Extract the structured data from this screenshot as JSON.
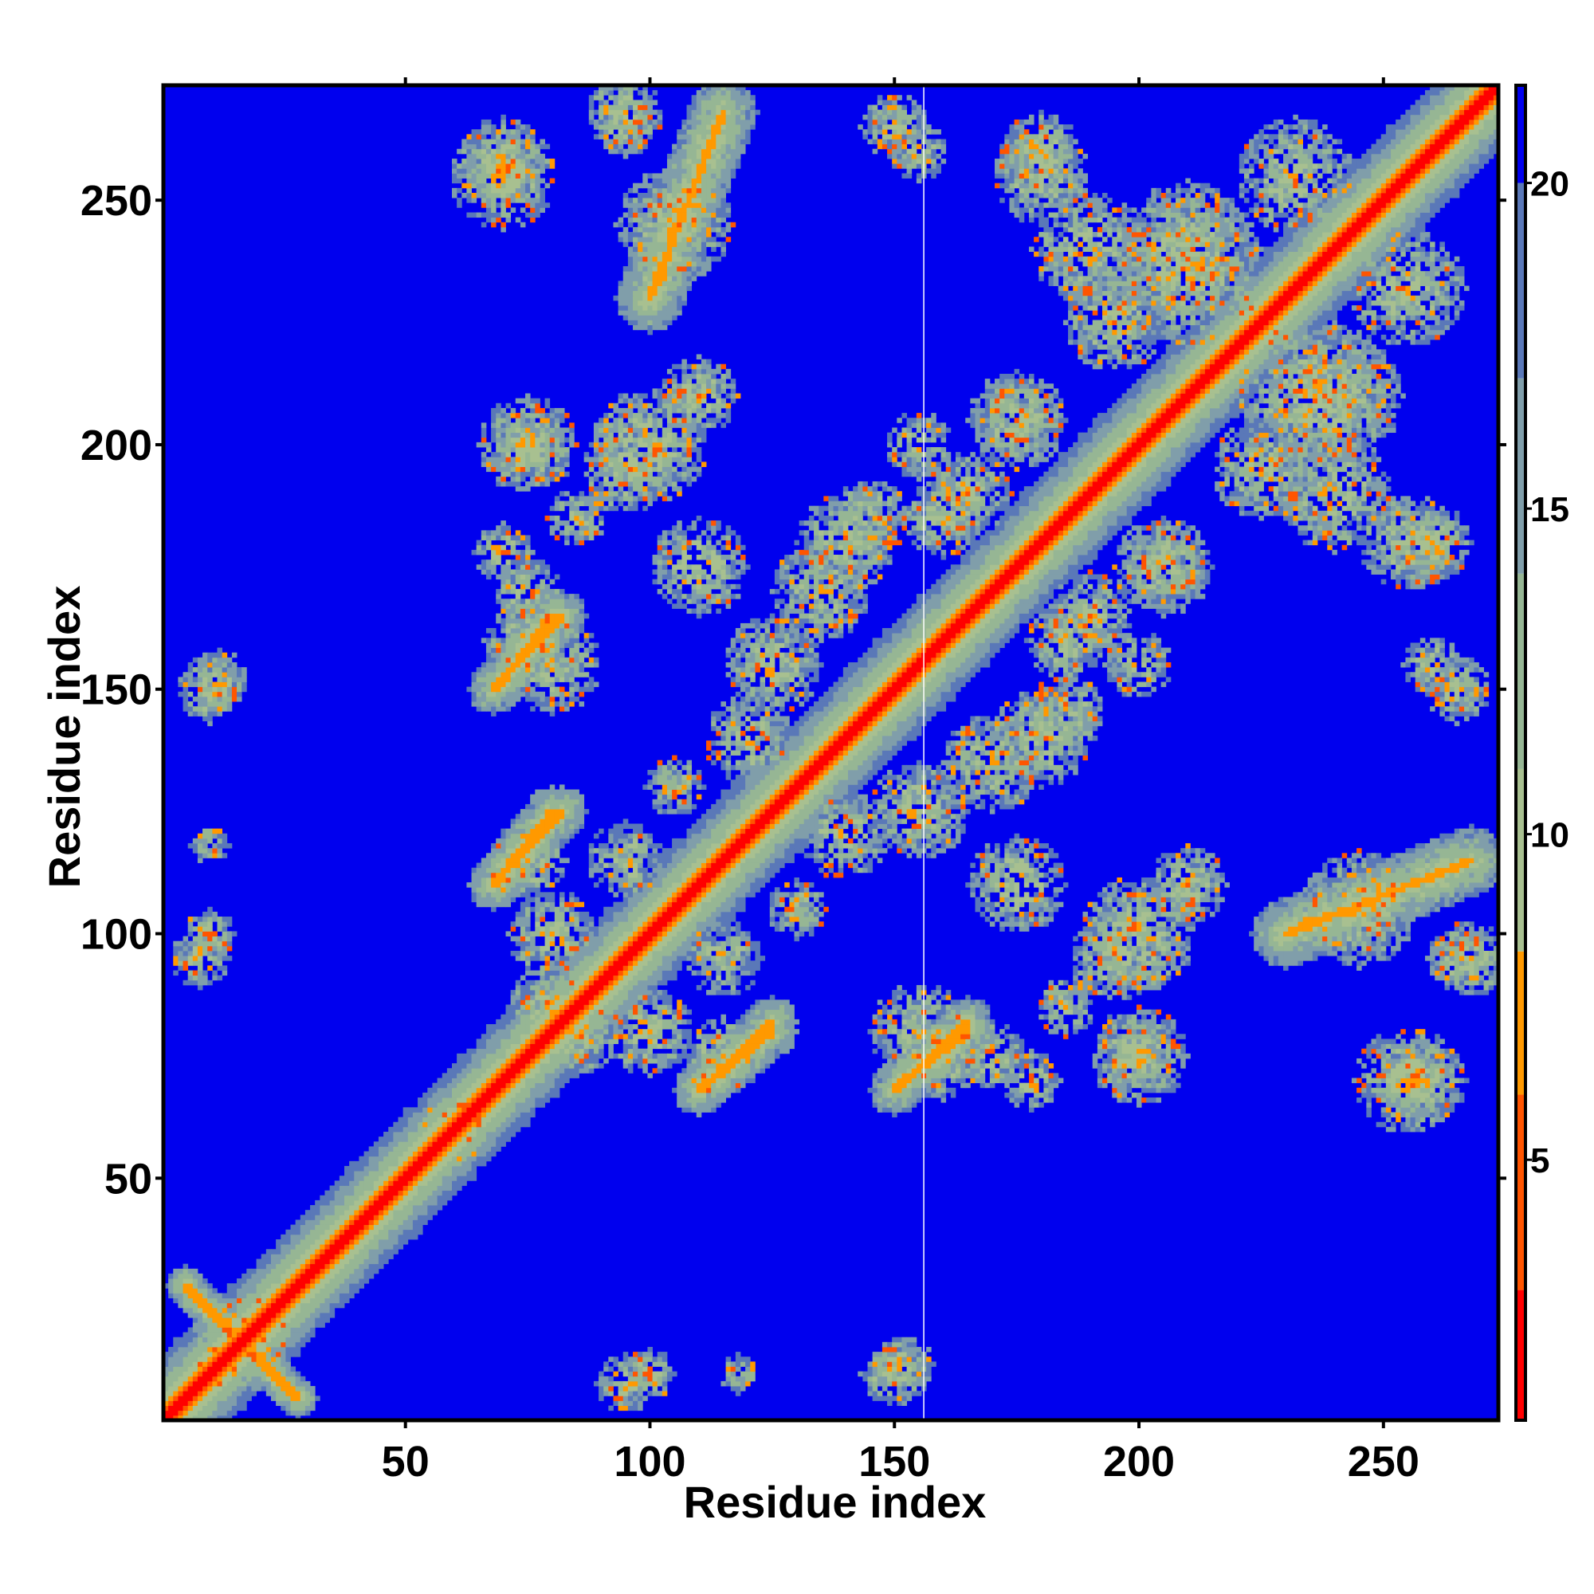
{
  "chart_data": {
    "type": "heatmap",
    "xlabel": "Residue index",
    "ylabel": "Residue index",
    "xlim": [
      1,
      273
    ],
    "ylim": [
      1,
      273
    ],
    "xticks": [
      50,
      100,
      150,
      200,
      250
    ],
    "yticks": [
      50,
      100,
      150,
      200,
      250
    ],
    "xtick_labels": [
      "50",
      "100",
      "150",
      "200",
      "250"
    ],
    "ytick_labels": [
      "50",
      "100",
      "150",
      "200",
      "250"
    ],
    "colorbar": {
      "range": [
        1,
        21.5
      ],
      "ticks": [
        5,
        10,
        15,
        20
      ],
      "tick_labels": [
        "5",
        "10",
        "15",
        "20"
      ],
      "bands": [
        {
          "from": 1,
          "to": 3,
          "color": "#ff0000"
        },
        {
          "from": 3,
          "to": 6,
          "color": "#ff5500"
        },
        {
          "from": 6,
          "to": 8.2,
          "color": "#ff9900"
        },
        {
          "from": 8.2,
          "to": 11,
          "color": "#a8c090"
        },
        {
          "from": 11,
          "to": 14,
          "color": "#96b694"
        },
        {
          "from": 14,
          "to": 17,
          "color": "#809eaa"
        },
        {
          "from": 17,
          "to": 20,
          "color": "#5a78b8"
        },
        {
          "from": 20,
          "to": 21.5,
          "color": "#0000ee"
        }
      ]
    },
    "background_color": "#0000ee",
    "missing_residue_x": 156,
    "contact_features": [
      {
        "kind": "diagonal",
        "from": 1,
        "to": 273,
        "width": 6
      },
      {
        "kind": "blob",
        "x": 16,
        "y": 16,
        "r": 10
      },
      {
        "kind": "antidiag",
        "x1": 5,
        "y1": 28,
        "x2": 28,
        "y2": 5,
        "width": 4
      },
      {
        "kind": "blob",
        "x": 152,
        "y": 12,
        "r": 6
      },
      {
        "kind": "blob",
        "x": 95,
        "y": 8,
        "r": 6
      },
      {
        "kind": "blob",
        "x": 10,
        "y": 150,
        "r": 7
      },
      {
        "kind": "blob",
        "x": 10,
        "y": 100,
        "r": 5
      },
      {
        "kind": "blob",
        "x": 10,
        "y": 118,
        "r": 4
      },
      {
        "kind": "blob",
        "x": 70,
        "y": 258,
        "r": 9
      },
      {
        "kind": "band",
        "x1": 100,
        "y1": 230,
        "x2": 115,
        "y2": 268,
        "width": 7
      },
      {
        "kind": "blob",
        "x": 95,
        "y": 268,
        "r": 8
      },
      {
        "kind": "blob",
        "x": 155,
        "y": 260,
        "r": 6
      },
      {
        "kind": "blob",
        "x": 180,
        "y": 255,
        "r": 10
      },
      {
        "kind": "blob",
        "x": 210,
        "y": 240,
        "r": 14
      },
      {
        "kind": "blob",
        "x": 235,
        "y": 210,
        "r": 16
      },
      {
        "kind": "blob",
        "x": 255,
        "y": 232,
        "r": 12
      },
      {
        "kind": "blob",
        "x": 240,
        "y": 190,
        "r": 12
      },
      {
        "kind": "blob",
        "x": 195,
        "y": 225,
        "r": 10
      },
      {
        "kind": "blob",
        "x": 260,
        "y": 180,
        "r": 8
      },
      {
        "kind": "blob",
        "x": 265,
        "y": 150,
        "r": 7
      },
      {
        "kind": "blob",
        "x": 245,
        "y": 105,
        "r": 12
      },
      {
        "kind": "blob",
        "x": 265,
        "y": 95,
        "r": 6
      },
      {
        "kind": "blob",
        "x": 255,
        "y": 70,
        "r": 11
      },
      {
        "kind": "blob",
        "x": 75,
        "y": 200,
        "r": 8
      },
      {
        "kind": "blob",
        "x": 100,
        "y": 200,
        "r": 12
      },
      {
        "kind": "blob",
        "x": 155,
        "y": 200,
        "r": 7
      },
      {
        "kind": "blob",
        "x": 175,
        "y": 205,
        "r": 10
      },
      {
        "kind": "blob",
        "x": 75,
        "y": 160,
        "r": 9
      },
      {
        "kind": "band",
        "x1": 68,
        "y1": 150,
        "x2": 82,
        "y2": 165,
        "width": 5
      },
      {
        "kind": "blob",
        "x": 70,
        "y": 178,
        "r": 6
      },
      {
        "kind": "blob",
        "x": 85,
        "y": 185,
        "r": 6
      },
      {
        "kind": "blob",
        "x": 140,
        "y": 180,
        "r": 10
      },
      {
        "kind": "blob",
        "x": 160,
        "y": 185,
        "r": 8
      },
      {
        "kind": "blob",
        "x": 205,
        "y": 175,
        "r": 9
      },
      {
        "kind": "blob",
        "x": 190,
        "y": 165,
        "r": 9
      },
      {
        "kind": "blob",
        "x": 125,
        "y": 155,
        "r": 10
      },
      {
        "kind": "blob",
        "x": 170,
        "y": 135,
        "r": 10
      },
      {
        "kind": "blob",
        "x": 185,
        "y": 145,
        "r": 8
      },
      {
        "kind": "blob",
        "x": 140,
        "y": 120,
        "r": 9
      },
      {
        "kind": "blob",
        "x": 75,
        "y": 115,
        "r": 8
      },
      {
        "kind": "band",
        "x1": 68,
        "y1": 110,
        "x2": 82,
        "y2": 125,
        "width": 5
      },
      {
        "kind": "blob",
        "x": 80,
        "y": 85,
        "r": 9
      },
      {
        "kind": "blob",
        "x": 100,
        "y": 80,
        "r": 9
      },
      {
        "kind": "band",
        "x1": 110,
        "y1": 68,
        "x2": 125,
        "y2": 80,
        "width": 5
      },
      {
        "kind": "blob",
        "x": 115,
        "y": 95,
        "r": 8
      },
      {
        "kind": "blob",
        "x": 155,
        "y": 80,
        "r": 10
      },
      {
        "kind": "band",
        "x1": 152,
        "y1": 70,
        "x2": 165,
        "y2": 80,
        "width": 5
      },
      {
        "kind": "blob",
        "x": 175,
        "y": 110,
        "r": 10
      },
      {
        "kind": "blob",
        "x": 195,
        "y": 95,
        "r": 9
      },
      {
        "kind": "blob",
        "x": 210,
        "y": 110,
        "r": 8
      },
      {
        "kind": "blob",
        "x": 200,
        "y": 75,
        "r": 10
      },
      {
        "kind": "blob",
        "x": 170,
        "y": 75,
        "r": 7
      },
      {
        "kind": "blob",
        "x": 130,
        "y": 105,
        "r": 6
      },
      {
        "kind": "blob",
        "x": 60,
        "y": 60,
        "r": 7
      }
    ]
  }
}
